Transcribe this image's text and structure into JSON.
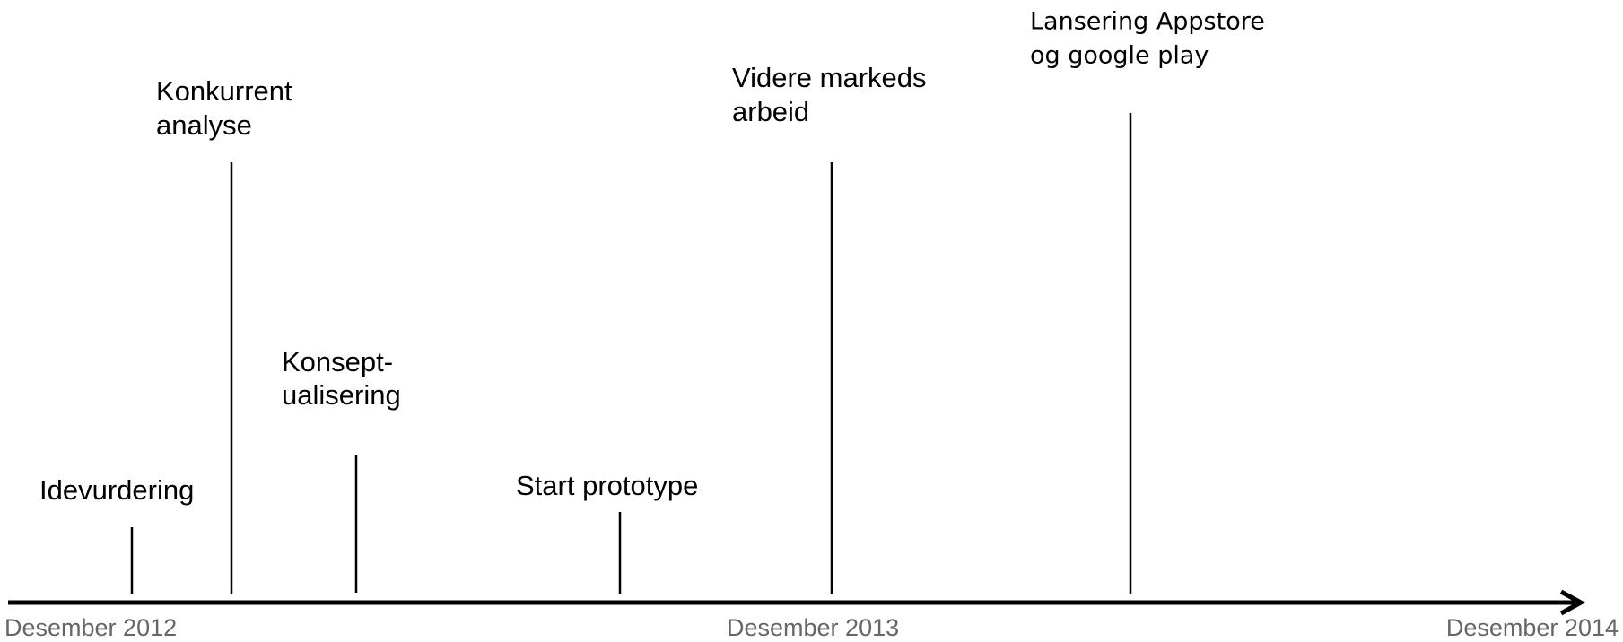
{
  "events": [
    {
      "label": [
        "Idevurdering"
      ]
    },
    {
      "label": [
        "Konkurrent",
        "analyse"
      ]
    },
    {
      "label": [
        "Konsept-",
        "ualisering"
      ]
    },
    {
      "label": [
        "Start prototype"
      ]
    },
    {
      "label": [
        "Videre markeds",
        "arbeid"
      ]
    },
    {
      "label": [
        "Lansering Appstore",
        "og google play"
      ]
    }
  ],
  "axis_labels": [
    "Desember 2012",
    "Desember 2013",
    "Desember 2014"
  ]
}
